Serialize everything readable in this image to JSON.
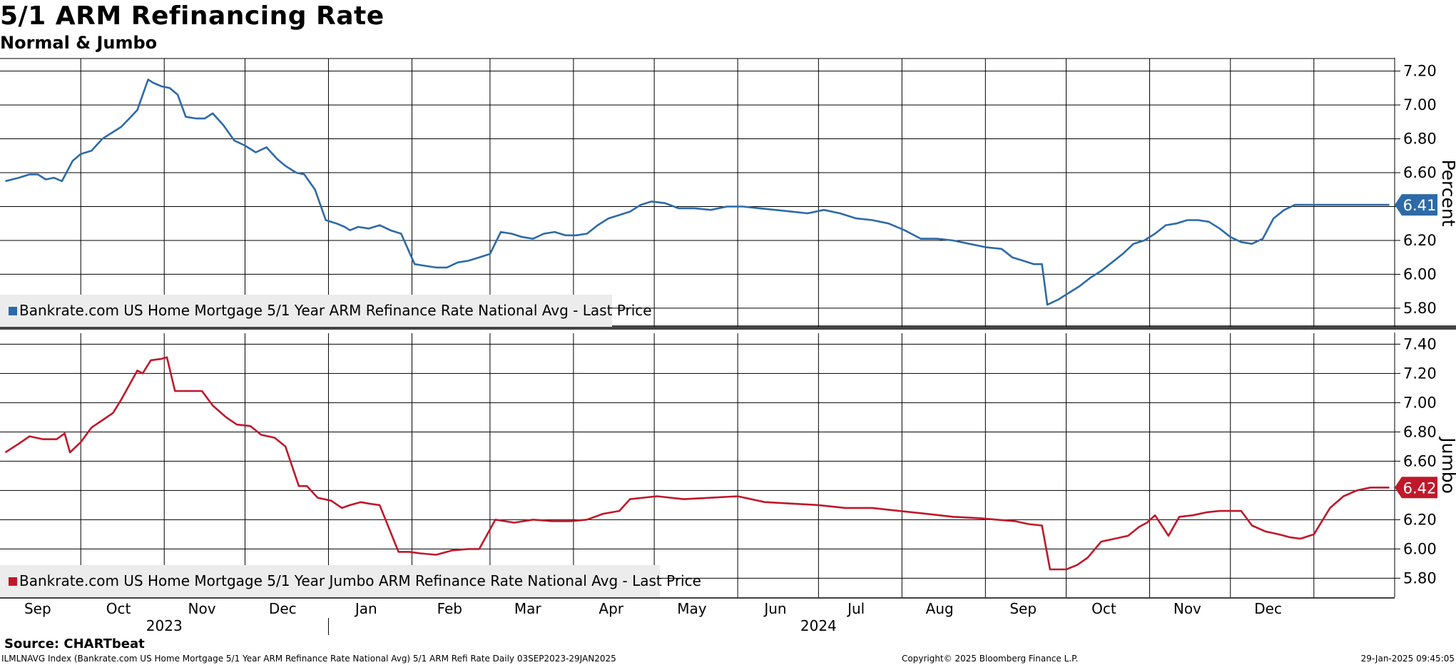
{
  "header": {
    "title": "5/1 ARM Refinancing Rate",
    "subtitle": "Normal & Jumbo"
  },
  "footer": {
    "source": "Source: CHARTbeat",
    "index_line": "ILMLNAVG Index (Bankrate.com US Home Mortgage 5/1 Year ARM Refinance Rate National Avg) 5/1 ARM Refi Rate  Daily 03SEP2023-29JAN2025",
    "copyright": "Copyright© 2025 Bloomberg Finance L.P.",
    "timestamp": "29-Jan-2025 09:45:05"
  },
  "colors": {
    "normal": "#2d6aa8",
    "jumbo": "#c0182b",
    "grid": "#000000"
  },
  "chart_data": [
    {
      "type": "line",
      "ylabel": "Percent",
      "ylim": [
        5.69,
        7.27
      ],
      "yticks": [
        "7.20",
        "7.00",
        "6.80",
        "6.60",
        "6.40",
        "6.20",
        "6.00",
        "5.80"
      ],
      "last_value_label": "6.41",
      "legend": "Bankrate.com US Home Mortgage 5/1 Year ARM Refinance Rate National Avg - Last Price",
      "series": [
        {
          "name": "Bankrate.com US Home Mortgage 5/1 Year ARM Refinance Rate National Avg - Last Price",
          "x": [
            "2023-09-03",
            "2023-09-08",
            "2023-09-12",
            "2023-09-15",
            "2023-09-18",
            "2023-09-21",
            "2023-09-24",
            "2023-09-28",
            "2023-10-01",
            "2023-10-05",
            "2023-10-09",
            "2023-10-12",
            "2023-10-16",
            "2023-10-19",
            "2023-10-22",
            "2023-10-26",
            "2023-10-28",
            "2023-10-31",
            "2023-11-03",
            "2023-11-06",
            "2023-11-09",
            "2023-11-13",
            "2023-11-16",
            "2023-11-19",
            "2023-11-23",
            "2023-11-27",
            "2023-12-01",
            "2023-12-05",
            "2023-12-09",
            "2023-12-13",
            "2023-12-16",
            "2023-12-20",
            "2023-12-23",
            "2023-12-27",
            "2023-12-31",
            "2024-01-04",
            "2024-01-07",
            "2024-01-09",
            "2024-01-12",
            "2024-01-16",
            "2024-01-20",
            "2024-01-24",
            "2024-01-28",
            "2024-02-02",
            "2024-02-06",
            "2024-02-10",
            "2024-02-14",
            "2024-02-18",
            "2024-02-22",
            "2024-02-26",
            "2024-03-01",
            "2024-03-05",
            "2024-03-09",
            "2024-03-13",
            "2024-03-17",
            "2024-03-21",
            "2024-03-25",
            "2024-03-29",
            "2024-04-02",
            "2024-04-06",
            "2024-04-10",
            "2024-04-14",
            "2024-04-18",
            "2024-04-22",
            "2024-04-26",
            "2024-04-30",
            "2024-05-05",
            "2024-05-10",
            "2024-05-16",
            "2024-05-22",
            "2024-05-28",
            "2024-06-03",
            "2024-06-09",
            "2024-06-15",
            "2024-06-21",
            "2024-06-27",
            "2024-07-03",
            "2024-07-09",
            "2024-07-15",
            "2024-07-21",
            "2024-07-27",
            "2024-08-02",
            "2024-08-08",
            "2024-08-14",
            "2024-08-20",
            "2024-08-26",
            "2024-09-01",
            "2024-09-07",
            "2024-09-11",
            "2024-09-15",
            "2024-09-19",
            "2024-09-22",
            "2024-09-24",
            "2024-09-28",
            "2024-10-02",
            "2024-10-06",
            "2024-10-10",
            "2024-10-14",
            "2024-10-18",
            "2024-10-22",
            "2024-10-26",
            "2024-10-30",
            "2024-11-03",
            "2024-11-07",
            "2024-11-11",
            "2024-11-15",
            "2024-11-19",
            "2024-11-23",
            "2024-11-27",
            "2024-12-01",
            "2024-12-05",
            "2024-12-09",
            "2024-12-13",
            "2024-12-17",
            "2024-12-21",
            "2024-12-25",
            "2024-12-29",
            "2025-01-03",
            "2025-01-08",
            "2025-01-13",
            "2025-01-18",
            "2025-01-23",
            "2025-01-29"
          ],
          "y": [
            6.55,
            6.57,
            6.59,
            6.59,
            6.56,
            6.57,
            6.55,
            6.67,
            6.71,
            6.73,
            6.8,
            6.83,
            6.87,
            6.92,
            6.97,
            7.15,
            7.13,
            7.11,
            7.1,
            7.06,
            6.93,
            6.92,
            6.92,
            6.95,
            6.88,
            6.79,
            6.76,
            6.72,
            6.75,
            6.68,
            6.64,
            6.6,
            6.59,
            6.5,
            6.32,
            6.3,
            6.28,
            6.26,
            6.28,
            6.27,
            6.29,
            6.26,
            6.24,
            6.06,
            6.05,
            6.04,
            6.04,
            6.07,
            6.08,
            6.1,
            6.12,
            6.25,
            6.24,
            6.22,
            6.21,
            6.24,
            6.25,
            6.23,
            6.23,
            6.24,
            6.29,
            6.33,
            6.35,
            6.37,
            6.41,
            6.43,
            6.42,
            6.39,
            6.39,
            6.38,
            6.4,
            6.4,
            6.39,
            6.38,
            6.37,
            6.36,
            6.38,
            6.36,
            6.33,
            6.32,
            6.3,
            6.26,
            6.21,
            6.21,
            6.2,
            6.18,
            6.16,
            6.15,
            6.1,
            6.08,
            6.06,
            6.06,
            5.82,
            5.85,
            5.89,
            5.93,
            5.98,
            6.02,
            6.07,
            6.12,
            6.18,
            6.2,
            6.24,
            6.29,
            6.3,
            6.32,
            6.32,
            6.31,
            6.27,
            6.22,
            6.19,
            6.18,
            6.21,
            6.33,
            6.38,
            6.41,
            6.41,
            6.41,
            6.41,
            6.41,
            6.41,
            6.41,
            6.41
          ]
        }
      ]
    },
    {
      "type": "line",
      "ylabel": "Jumbo",
      "ylim": [
        5.67,
        7.47
      ],
      "yticks": [
        "7.40",
        "7.20",
        "7.00",
        "6.80",
        "6.60",
        "6.40",
        "6.20",
        "6.00",
        "5.80"
      ],
      "last_value_label": "6.42",
      "legend": "Bankrate.com US Home Mortgage 5/1 Year Jumbo ARM Refinance Rate National Avg - Last Price",
      "series": [
        {
          "name": "Bankrate.com US Home Mortgage 5/1 Year Jumbo ARM Refinance Rate National Avg - Last Price",
          "x": [
            "2023-09-03",
            "2023-09-08",
            "2023-09-12",
            "2023-09-17",
            "2023-09-22",
            "2023-09-25",
            "2023-09-27",
            "2023-10-01",
            "2023-10-05",
            "2023-10-09",
            "2023-10-13",
            "2023-10-16",
            "2023-10-19",
            "2023-10-22",
            "2023-10-24",
            "2023-10-27",
            "2023-10-31",
            "2023-11-02",
            "2023-11-05",
            "2023-11-10",
            "2023-11-15",
            "2023-11-19",
            "2023-11-24",
            "2023-11-28",
            "2023-12-03",
            "2023-12-07",
            "2023-12-12",
            "2023-12-16",
            "2023-12-21",
            "2023-12-24",
            "2023-12-28",
            "2024-01-02",
            "2024-01-06",
            "2024-01-09",
            "2024-01-13",
            "2024-01-16",
            "2024-01-20",
            "2024-01-27",
            "2024-01-31",
            "2024-02-04",
            "2024-02-10",
            "2024-02-16",
            "2024-02-22",
            "2024-02-26",
            "2024-03-03",
            "2024-03-10",
            "2024-03-17",
            "2024-03-24",
            "2024-03-31",
            "2024-04-06",
            "2024-04-12",
            "2024-04-18",
            "2024-04-22",
            "2024-05-02",
            "2024-05-12",
            "2024-05-22",
            "2024-06-01",
            "2024-06-11",
            "2024-06-21",
            "2024-07-01",
            "2024-07-11",
            "2024-07-21",
            "2024-07-31",
            "2024-08-10",
            "2024-08-20",
            "2024-08-30",
            "2024-09-05",
            "2024-09-12",
            "2024-09-17",
            "2024-09-22",
            "2024-09-25",
            "2024-10-01",
            "2024-10-05",
            "2024-10-09",
            "2024-10-14",
            "2024-10-19",
            "2024-10-24",
            "2024-10-28",
            "2024-10-31",
            "2024-11-03",
            "2024-11-08",
            "2024-11-12",
            "2024-11-17",
            "2024-11-22",
            "2024-11-27",
            "2024-12-02",
            "2024-12-05",
            "2024-12-09",
            "2024-12-14",
            "2024-12-19",
            "2024-12-23",
            "2024-12-27",
            "2025-01-01",
            "2025-01-07",
            "2025-01-12",
            "2025-01-17",
            "2025-01-22",
            "2025-01-29"
          ],
          "y": [
            6.66,
            6.72,
            6.77,
            6.75,
            6.75,
            6.79,
            6.66,
            6.73,
            6.83,
            6.88,
            6.93,
            7.02,
            7.12,
            7.22,
            7.2,
            7.29,
            7.3,
            7.31,
            7.08,
            7.08,
            7.08,
            6.98,
            6.9,
            6.85,
            6.84,
            6.78,
            6.76,
            6.7,
            6.43,
            6.43,
            6.35,
            6.33,
            6.28,
            6.3,
            6.32,
            6.31,
            6.3,
            5.98,
            5.98,
            5.97,
            5.96,
            5.99,
            6.0,
            6.0,
            6.2,
            6.18,
            6.2,
            6.19,
            6.19,
            6.2,
            6.24,
            6.26,
            6.34,
            6.36,
            6.34,
            6.35,
            6.36,
            6.32,
            6.31,
            6.3,
            6.28,
            6.28,
            6.26,
            6.24,
            6.22,
            6.21,
            6.2,
            6.19,
            6.17,
            6.16,
            5.86,
            5.86,
            5.89,
            5.94,
            6.05,
            6.07,
            6.09,
            6.15,
            6.18,
            6.23,
            6.09,
            6.22,
            6.23,
            6.25,
            6.26,
            6.26,
            6.26,
            6.16,
            6.12,
            6.1,
            6.08,
            6.07,
            6.1,
            6.28,
            6.36,
            6.4,
            6.42,
            6.42
          ]
        }
      ]
    }
  ],
  "x_axis": {
    "months": [
      {
        "label": "Sep",
        "date": "2023-09-15"
      },
      {
        "label": "Oct",
        "date": "2023-10-15"
      },
      {
        "label": "Nov",
        "date": "2023-11-15"
      },
      {
        "label": "Dec",
        "date": "2023-12-15"
      },
      {
        "label": "Jan",
        "date": "2024-01-15"
      },
      {
        "label": "Feb",
        "date": "2024-02-15"
      },
      {
        "label": "Mar",
        "date": "2024-03-15"
      },
      {
        "label": "Apr",
        "date": "2024-04-15"
      },
      {
        "label": "May",
        "date": "2024-05-15"
      },
      {
        "label": "Jun",
        "date": "2024-06-15"
      },
      {
        "label": "Jul",
        "date": "2024-07-15"
      },
      {
        "label": "Aug",
        "date": "2024-08-15"
      },
      {
        "label": "Sep",
        "date": "2024-09-15"
      },
      {
        "label": "Oct",
        "date": "2024-10-15"
      },
      {
        "label": "Nov",
        "date": "2024-11-15"
      },
      {
        "label": "Dec",
        "date": "2024-12-15"
      }
    ],
    "years": [
      {
        "label": "2023",
        "date": "2023-11-01"
      },
      {
        "label": "2024",
        "date": "2024-07-01"
      }
    ],
    "gridlines": [
      "2023-10-01",
      "2023-11-01",
      "2023-12-01",
      "2024-01-01",
      "2024-02-01",
      "2024-03-01",
      "2024-04-01",
      "2024-05-01",
      "2024-06-01",
      "2024-07-01",
      "2024-08-01",
      "2024-09-01",
      "2024-10-01",
      "2024-11-01",
      "2024-12-01",
      "2025-01-01"
    ],
    "range": [
      "2023-09-01",
      "2025-01-31"
    ]
  }
}
